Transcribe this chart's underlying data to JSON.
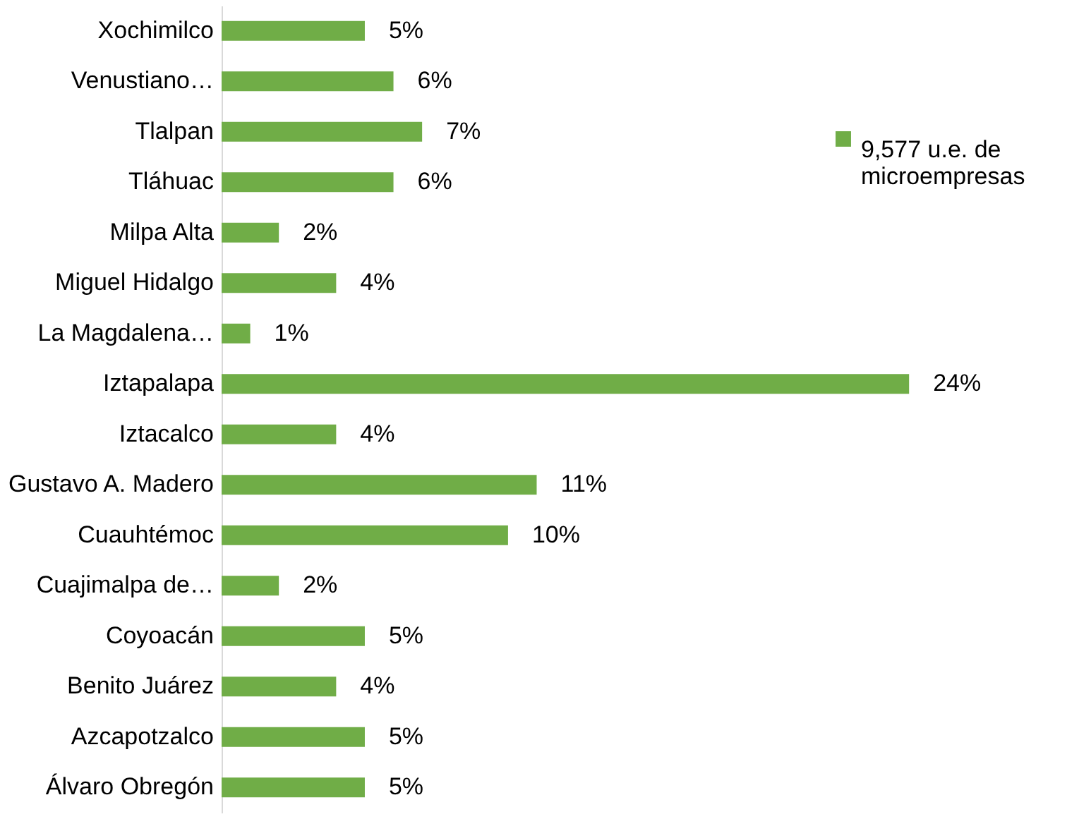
{
  "chart_data": {
    "type": "bar",
    "orientation": "horizontal",
    "categories": [
      "Xochimilco",
      "Venustiano…",
      "Tlalpan",
      "Tláhuac",
      "Milpa Alta",
      "Miguel Hidalgo",
      "La Magdalena…",
      "Iztapalapa",
      "Iztacalco",
      "Gustavo A. Madero",
      "Cuauhtémoc",
      "Cuajimalpa de…",
      "Coyoacán",
      "Benito Juárez",
      "Azcapotzalco",
      "Álvaro Obregón"
    ],
    "series": [
      {
        "name": "9,577 u.e. de microempresas",
        "color": "#70ad47",
        "values": [
          5,
          6,
          7,
          6,
          2,
          4,
          1,
          24,
          4,
          11,
          10,
          2,
          5,
          4,
          5,
          5
        ],
        "value_labels": [
          "5%",
          "6%",
          "7%",
          "6%",
          "2%",
          "4%",
          "1%",
          "24%",
          "4%",
          "11%",
          "10%",
          "2%",
          "5%",
          "4%",
          "5%",
          "5%"
        ]
      }
    ],
    "legend": "top right",
    "grid": false
  }
}
